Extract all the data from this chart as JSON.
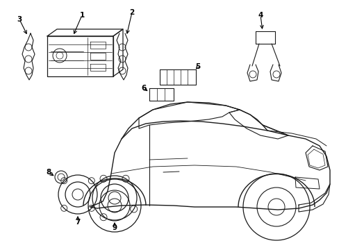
{
  "background_color": "#ffffff",
  "line_color": "#1a1a1a",
  "label_color": "#000000",
  "fig_width": 4.89,
  "fig_height": 3.6,
  "dpi": 100,
  "lw": 0.9
}
